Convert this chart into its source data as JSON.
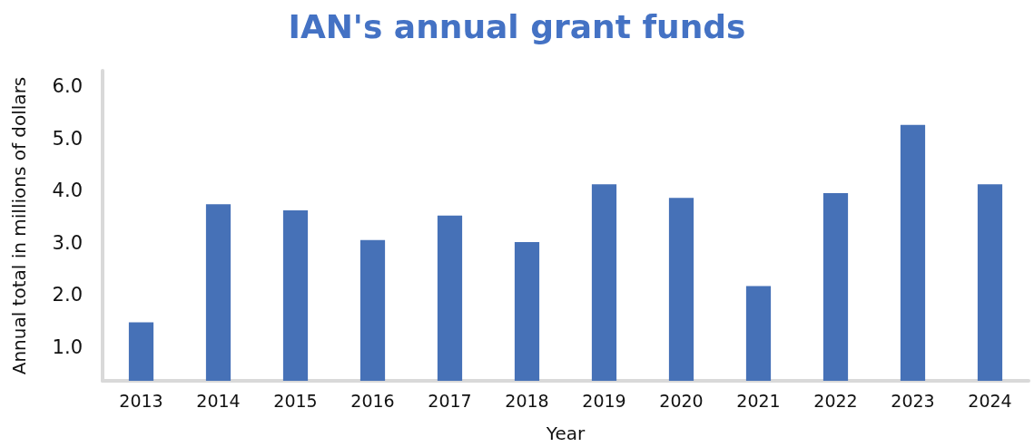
{
  "chart_data": {
    "type": "bar",
    "title": "IAN's annual grant funds",
    "xlabel": "Year",
    "ylabel": "Annual total in millions of dollars",
    "categories": [
      "2013",
      "2014",
      "2015",
      "2016",
      "2017",
      "2018",
      "2019",
      "2020",
      "2021",
      "2022",
      "2023",
      "2024"
    ],
    "values": [
      1.47,
      3.74,
      3.62,
      3.05,
      3.52,
      3.01,
      4.12,
      3.86,
      2.17,
      3.95,
      5.26,
      4.12
    ],
    "color": "#4671b7",
    "ylim": [
      0.35,
      6.3
    ],
    "yticks": [
      {
        "value": 1,
        "label": "1.0"
      },
      {
        "value": 2,
        "label": "2.0"
      },
      {
        "value": 3,
        "label": "3.0"
      },
      {
        "value": 4,
        "label": "4.0"
      },
      {
        "value": 5,
        "label": "5.0"
      },
      {
        "value": 6,
        "label": "6.0"
      }
    ],
    "grid": false
  }
}
